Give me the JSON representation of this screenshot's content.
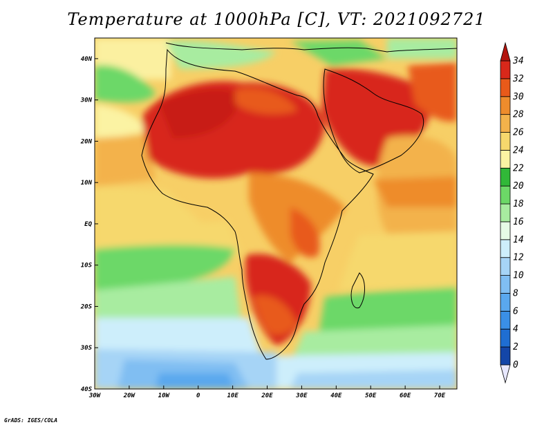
{
  "title": "Temperature at 1000hPa [C], VT: 2021092721",
  "credit": "GrADS: IGES/COLA",
  "map": {
    "lon_range": [
      -30,
      75
    ],
    "lat_range": [
      -40,
      45
    ],
    "x_ticks": [
      {
        "value": -30,
        "label": "30W"
      },
      {
        "value": -20,
        "label": "20W"
      },
      {
        "value": -10,
        "label": "10W"
      },
      {
        "value": 0,
        "label": "0"
      },
      {
        "value": 10,
        "label": "10E"
      },
      {
        "value": 20,
        "label": "20E"
      },
      {
        "value": 30,
        "label": "30E"
      },
      {
        "value": 40,
        "label": "40E"
      },
      {
        "value": 50,
        "label": "50E"
      },
      {
        "value": 60,
        "label": "60E"
      },
      {
        "value": 70,
        "label": "70E"
      }
    ],
    "y_ticks": [
      {
        "value": 40,
        "label": "40N"
      },
      {
        "value": 30,
        "label": "30N"
      },
      {
        "value": 20,
        "label": "20N"
      },
      {
        "value": 10,
        "label": "10N"
      },
      {
        "value": 0,
        "label": "EQ"
      },
      {
        "value": -10,
        "label": "10S"
      },
      {
        "value": -20,
        "label": "20S"
      },
      {
        "value": -30,
        "label": "30S"
      },
      {
        "value": -40,
        "label": "40S"
      }
    ]
  },
  "colorbar": {
    "labels": [
      "0",
      "2",
      "4",
      "6",
      "8",
      "10",
      "12",
      "14",
      "16",
      "18",
      "20",
      "22",
      "24",
      "26",
      "28",
      "30",
      "32",
      "34"
    ],
    "colors": [
      "#0b1a6e",
      "#1446a8",
      "#1f6ed2",
      "#3a8fe6",
      "#5aa8ee",
      "#80bef2",
      "#a6d4f6",
      "#cdeefb",
      "#e6fbe6",
      "#a8eca0",
      "#6cd867",
      "#31b838",
      "#fbf3a3",
      "#f6d86d",
      "#f3b24b",
      "#ee8c2c",
      "#e85a1a",
      "#d8281a",
      "#b3150e"
    ]
  }
}
